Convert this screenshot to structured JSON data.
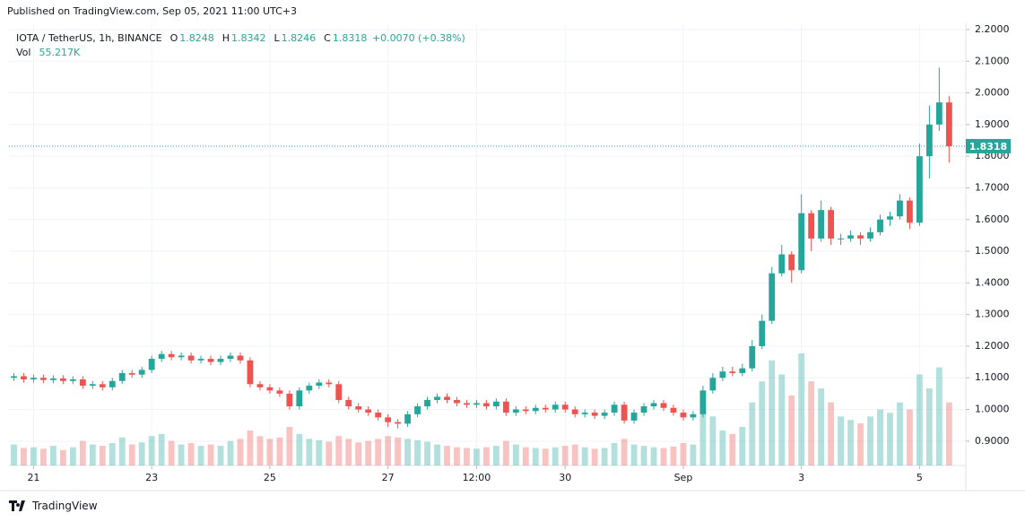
{
  "header": "Published on TradingView.com, Sep 05, 2021 11:00 UTC+3",
  "footer": "TradingView",
  "chart_data": {
    "type": "candlestick",
    "symbol": "IOTA / TetherUS, 1h, BINANCE",
    "open_label": "O",
    "open_value": 1.8248,
    "high_label": "H",
    "high_value": 1.8342,
    "low_label": "L",
    "low_value": 1.8246,
    "close_label": "C",
    "close_value": 1.8318,
    "change": "+0.0070 (+0.38%)",
    "volume_label": "Vol",
    "volume_value": "55.217K",
    "last_price": 1.8318,
    "up_color": "#26a69a",
    "down_color": "#ef5350",
    "grid": true,
    "ylim": [
      0.823,
      2.217
    ],
    "yticks": [
      {
        "value": 0.9,
        "label": "0.9000"
      },
      {
        "value": 1.0,
        "label": "1.0000"
      },
      {
        "value": 1.1,
        "label": "1.1000"
      },
      {
        "value": 1.2,
        "label": "1.2000"
      },
      {
        "value": 1.3,
        "label": "1.3000"
      },
      {
        "value": 1.4,
        "label": "1.4000"
      },
      {
        "value": 1.5,
        "label": "1.5000"
      },
      {
        "value": 1.6,
        "label": "1.6000"
      },
      {
        "value": 1.7,
        "label": "1.7000"
      },
      {
        "value": 1.8,
        "label": "1.8000"
      },
      {
        "value": 1.9,
        "label": "1.9000"
      },
      {
        "value": 2.0,
        "label": "2.0000"
      },
      {
        "value": 2.1,
        "label": "2.1000"
      },
      {
        "value": 2.2,
        "label": "2.2000"
      }
    ],
    "xlim": [
      -0.5,
      96.7
    ],
    "xticks": [
      {
        "value": 2,
        "label": "21"
      },
      {
        "value": 14,
        "label": "23"
      },
      {
        "value": 26,
        "label": "25"
      },
      {
        "value": 38,
        "label": "27"
      },
      {
        "value": 47,
        "label": "12:00"
      },
      {
        "value": 56,
        "label": "30"
      },
      {
        "value": 68,
        "label": "Sep"
      },
      {
        "value": 80,
        "label": "3"
      },
      {
        "value": 92,
        "label": "5"
      }
    ],
    "open": [
      1.1,
      1.105,
      1.095,
      1.1,
      1.093,
      1.098,
      1.09,
      1.095,
      1.075,
      1.08,
      1.07,
      1.09,
      1.115,
      1.11,
      1.125,
      1.16,
      1.175,
      1.165,
      1.17,
      1.155,
      1.16,
      1.15,
      1.16,
      1.17,
      1.155,
      1.08,
      1.07,
      1.06,
      1.05,
      1.01,
      1.06,
      1.075,
      1.085,
      1.08,
      1.03,
      1.01,
      1.0,
      0.99,
      0.975,
      0.96,
      0.955,
      0.985,
      1.01,
      1.03,
      1.04,
      1.03,
      1.02,
      1.015,
      1.02,
      1.01,
      1.025,
      0.99,
      1.0,
      0.995,
      1.005,
      1.0,
      1.015,
      1.0,
      0.985,
      0.99,
      0.98,
      0.99,
      1.015,
      0.965,
      0.99,
      1.01,
      1.02,
      1.005,
      0.99,
      0.975,
      0.985,
      1.06,
      1.1,
      1.12,
      1.115,
      1.13,
      1.2,
      1.28,
      1.43,
      1.49,
      1.44,
      1.62,
      1.54,
      1.63,
      1.54,
      1.54,
      1.55,
      1.54,
      1.56,
      1.6,
      1.61,
      1.66,
      1.59,
      1.8,
      1.9,
      1.97
    ],
    "high": [
      1.115,
      1.115,
      1.11,
      1.11,
      1.108,
      1.108,
      1.105,
      1.105,
      1.09,
      1.09,
      1.1,
      1.125,
      1.125,
      1.135,
      1.17,
      1.185,
      1.185,
      1.18,
      1.18,
      1.17,
      1.17,
      1.17,
      1.18,
      1.18,
      1.165,
      1.09,
      1.08,
      1.07,
      1.06,
      1.07,
      1.085,
      1.095,
      1.095,
      1.09,
      1.04,
      1.02,
      1.01,
      1.0,
      0.985,
      0.97,
      0.995,
      1.02,
      1.04,
      1.05,
      1.05,
      1.04,
      1.03,
      1.03,
      1.03,
      1.035,
      1.035,
      1.01,
      1.01,
      1.015,
      1.015,
      1.025,
      1.025,
      1.01,
      1.0,
      1.0,
      1.0,
      1.025,
      1.025,
      1.0,
      1.02,
      1.03,
      1.03,
      1.015,
      1.0,
      0.995,
      1.075,
      1.115,
      1.135,
      1.135,
      1.145,
      1.22,
      1.3,
      1.45,
      1.52,
      1.5,
      1.68,
      1.63,
      1.66,
      1.64,
      1.555,
      1.565,
      1.56,
      1.575,
      1.615,
      1.625,
      1.68,
      1.67,
      1.84,
      1.96,
      2.08,
      1.99
    ],
    "low": [
      1.09,
      1.085,
      1.085,
      1.083,
      1.083,
      1.08,
      1.08,
      1.065,
      1.065,
      1.06,
      1.06,
      1.08,
      1.1,
      1.1,
      1.115,
      1.15,
      1.155,
      1.155,
      1.145,
      1.145,
      1.14,
      1.14,
      1.15,
      1.145,
      1.07,
      1.06,
      1.05,
      1.04,
      1.0,
      1.0,
      1.05,
      1.065,
      1.07,
      1.02,
      1.0,
      0.99,
      0.98,
      0.965,
      0.945,
      0.94,
      0.945,
      0.975,
      1.0,
      1.02,
      1.02,
      1.01,
      1.005,
      1.005,
      1.0,
      1.0,
      0.98,
      0.98,
      0.985,
      0.985,
      0.99,
      0.99,
      0.99,
      0.975,
      0.975,
      0.97,
      0.97,
      0.98,
      0.955,
      0.955,
      0.98,
      1.0,
      0.995,
      0.98,
      0.965,
      0.965,
      0.975,
      1.05,
      1.09,
      1.105,
      1.105,
      1.12,
      1.19,
      1.27,
      1.42,
      1.4,
      1.43,
      1.5,
      1.53,
      1.52,
      1.52,
      1.53,
      1.52,
      1.53,
      1.55,
      1.58,
      1.6,
      1.57,
      1.58,
      1.73,
      1.88,
      1.78
    ],
    "close": [
      1.105,
      1.095,
      1.1,
      1.093,
      1.098,
      1.09,
      1.095,
      1.075,
      1.08,
      1.07,
      1.09,
      1.115,
      1.11,
      1.125,
      1.16,
      1.175,
      1.165,
      1.17,
      1.155,
      1.16,
      1.15,
      1.16,
      1.17,
      1.155,
      1.08,
      1.07,
      1.06,
      1.05,
      1.01,
      1.06,
      1.075,
      1.085,
      1.08,
      1.03,
      1.01,
      1.0,
      0.99,
      0.975,
      0.96,
      0.955,
      0.985,
      1.01,
      1.03,
      1.04,
      1.03,
      1.02,
      1.015,
      1.02,
      1.01,
      1.025,
      0.99,
      1.0,
      0.995,
      1.005,
      1.0,
      1.015,
      1.0,
      0.985,
      0.99,
      0.98,
      0.99,
      1.015,
      0.965,
      0.99,
      1.01,
      1.02,
      1.005,
      0.99,
      0.975,
      0.985,
      1.06,
      1.1,
      1.12,
      1.115,
      1.13,
      1.2,
      1.28,
      1.43,
      1.49,
      1.44,
      1.62,
      1.54,
      1.63,
      1.54,
      1.54,
      1.55,
      1.54,
      1.56,
      1.6,
      1.61,
      1.66,
      1.59,
      1.8,
      1.9,
      1.97,
      1.8318
    ],
    "volume": [
      300000,
      250000,
      260000,
      240000,
      280000,
      220000,
      260000,
      350000,
      300000,
      280000,
      320000,
      400000,
      300000,
      330000,
      420000,
      450000,
      350000,
      300000,
      320000,
      280000,
      300000,
      280000,
      350000,
      380000,
      500000,
      420000,
      380000,
      400000,
      550000,
      450000,
      380000,
      360000,
      340000,
      420000,
      380000,
      330000,
      350000,
      380000,
      420000,
      400000,
      380000,
      360000,
      340000,
      300000,
      280000,
      260000,
      250000,
      240000,
      260000,
      280000,
      350000,
      300000,
      260000,
      250000,
      240000,
      260000,
      280000,
      300000,
      260000,
      240000,
      250000,
      320000,
      380000,
      300000,
      280000,
      260000,
      250000,
      270000,
      320000,
      300000,
      800000,
      700000,
      500000,
      450000,
      550000,
      900000,
      1200000,
      1500000,
      1300000,
      1000000,
      1600000,
      1200000,
      1100000,
      900000,
      700000,
      650000,
      600000,
      700000,
      800000,
      750000,
      900000,
      800000,
      1300000,
      1100000,
      1400000,
      900000
    ]
  }
}
